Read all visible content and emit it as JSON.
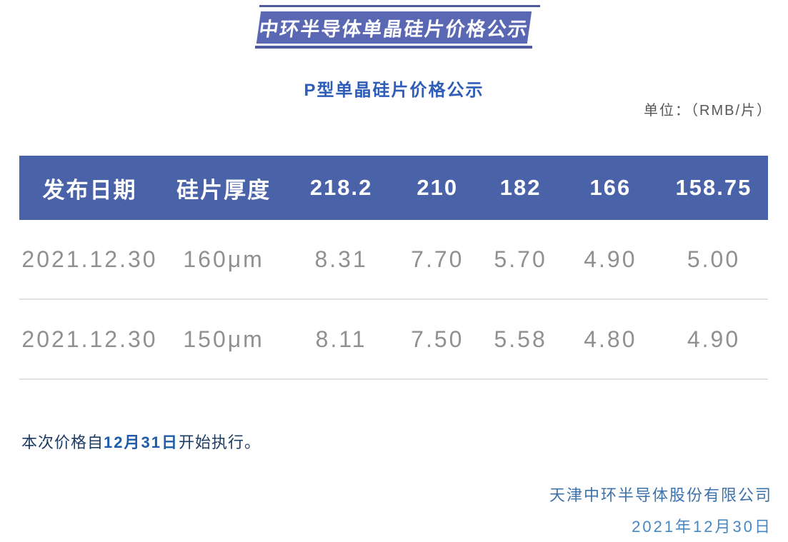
{
  "banner": {
    "title": "中环半导体单晶硅片价格公示"
  },
  "subtitle": "P型单晶硅片价格公示",
  "unit_label": "单位：（RMB/片）",
  "table": {
    "headers": [
      "发布日期",
      "硅片厚度",
      "218.2",
      "210",
      "182",
      "166",
      "158.75"
    ],
    "rows": [
      [
        "2021.12.30",
        "160μm",
        "8.31",
        "7.70",
        "5.70",
        "4.90",
        "5.00"
      ],
      [
        "2021.12.30",
        "150μm",
        "8.11",
        "7.50",
        "5.58",
        "4.80",
        "4.90"
      ]
    ]
  },
  "note": {
    "prefix": "本次价格自",
    "highlight": "12月31日",
    "suffix": "开始执行。"
  },
  "footer": {
    "company": "天津中环半导体股份有限公司",
    "date": "2021年12月30日"
  },
  "colors": {
    "ribbon_fill": "#5a67b3",
    "ribbon_line": "#4c5aa1",
    "table_header_bg": "#4a63a8",
    "table_header_text": "#ffffff",
    "table_body_text": "#909090",
    "subtitle_text": "#2e5cb7",
    "note_text": "#1d3c64",
    "note_highlight": "#1d5ca9",
    "footer_company_text": "#3c72ab",
    "footer_date_text": "#4788c4"
  }
}
